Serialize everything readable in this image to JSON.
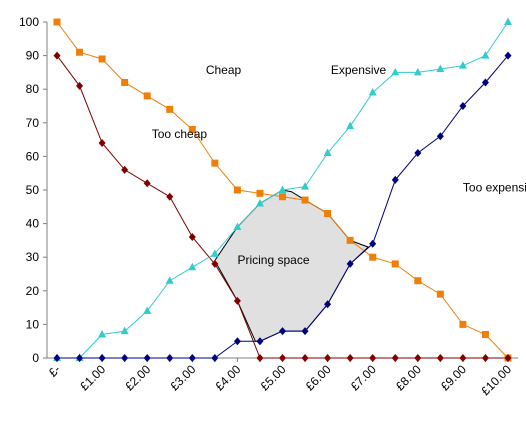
{
  "chart_data": {
    "type": "line",
    "title": "",
    "xlabel": "",
    "ylabel": "",
    "ylim": [
      0,
      100
    ],
    "yticks": [
      0,
      10,
      20,
      30,
      40,
      50,
      60,
      70,
      80,
      90,
      100
    ],
    "x": [
      0,
      0.5,
      1,
      1.5,
      2,
      2.5,
      3,
      3.5,
      4,
      4.5,
      5,
      5.5,
      6,
      6.5,
      7,
      7.5,
      8,
      8.5,
      9,
      9.5,
      10
    ],
    "xticks": [
      {
        "value": 0,
        "label": "£-"
      },
      {
        "value": 1,
        "label": "£1.00"
      },
      {
        "value": 2,
        "label": "£2.00"
      },
      {
        "value": 3,
        "label": "£3.00"
      },
      {
        "value": 4,
        "label": "£4.00"
      },
      {
        "value": 5,
        "label": "£5.00"
      },
      {
        "value": 6,
        "label": "£6.00"
      },
      {
        "value": 7,
        "label": "£7.00"
      },
      {
        "value": 8,
        "label": "£8.00"
      },
      {
        "value": 9,
        "label": "£9.00"
      },
      {
        "value": 10,
        "label": "£10.00"
      }
    ],
    "series": [
      {
        "name": "Cheap",
        "color": "#f07f09",
        "marker": "square",
        "values": [
          100,
          91,
          89,
          82,
          78,
          74,
          68,
          58,
          50,
          49,
          48,
          47,
          43,
          35,
          30,
          28,
          23,
          19,
          10,
          7,
          0
        ]
      },
      {
        "name": "Too cheap",
        "color": "#800000",
        "marker": "diamond",
        "values": [
          90,
          81,
          64,
          56,
          52,
          48,
          36,
          28,
          17,
          0,
          0,
          0,
          0,
          0,
          0,
          0,
          0,
          0,
          0,
          0,
          0
        ]
      },
      {
        "name": "Expensive",
        "color": "#33cccc",
        "marker": "triangle",
        "values": [
          0,
          0,
          7,
          8,
          14,
          23,
          27,
          31,
          39,
          46,
          50,
          51,
          61,
          69,
          79,
          85,
          85,
          86,
          87,
          90,
          100
        ]
      },
      {
        "name": "Too expensive",
        "color": "#000080",
        "marker": "diamond",
        "values": [
          0,
          0,
          0,
          0,
          0,
          0,
          0,
          0,
          5,
          5,
          8,
          8,
          16,
          28,
          34,
          53,
          61,
          66,
          75,
          82,
          90
        ]
      }
    ],
    "annotations": [
      {
        "text": "Pricing space",
        "fill": "#e0e0e0",
        "stroke": "#000000"
      }
    ],
    "legend": "none",
    "grid": false
  }
}
